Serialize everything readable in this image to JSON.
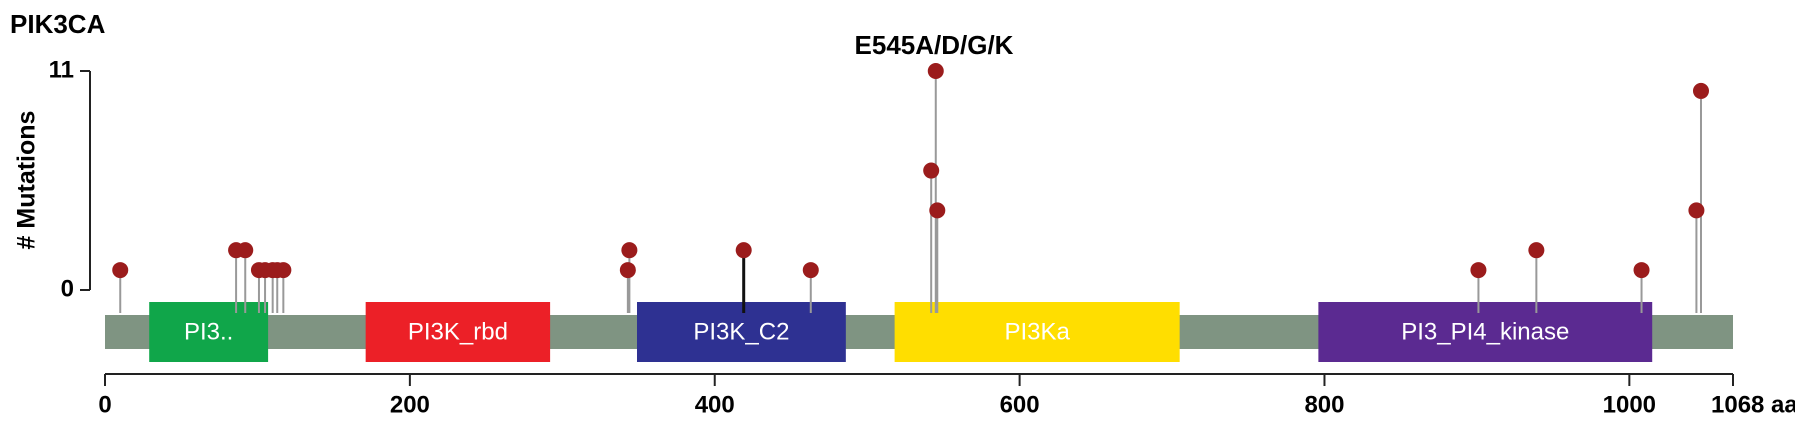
{
  "chart_data": {
    "type": "lollipop",
    "title": "PIK3CA",
    "annotation": "E545A/D/G/K",
    "ylabel": "# Mutations",
    "x": [
      10,
      86,
      92,
      101,
      105,
      110,
      113,
      117,
      343,
      344,
      419,
      463,
      542,
      545,
      546,
      901,
      939,
      1008,
      1044,
      1047
    ],
    "values": [
      1,
      2,
      2,
      1,
      1,
      1,
      1,
      1,
      1,
      2,
      2,
      1,
      6,
      11,
      4,
      1,
      2,
      1,
      4,
      10
    ],
    "color": "#9b1c1c",
    "stem_colors": [
      "#999",
      "#999",
      "#999",
      "#999",
      "#999",
      "#999",
      "#999",
      "#999",
      "#999",
      "#999",
      "#111",
      "#999",
      "#999",
      "#999",
      "#999",
      "#999",
      "#999",
      "#999",
      "#999",
      "#999"
    ],
    "track_color": "#7f9482",
    "domains": [
      {
        "name": "PI3..",
        "start": 29,
        "end": 107,
        "color": "#10a64a"
      },
      {
        "name": "PI3K_rbd",
        "start": 171,
        "end": 292,
        "color": "#ec2027"
      },
      {
        "name": "PI3K_C2",
        "start": 349,
        "end": 486,
        "color": "#2e3192"
      },
      {
        "name": "PI3Ka",
        "start": 518,
        "end": 705,
        "color": "#ffde00"
      },
      {
        "name": "PI3_PI4_kinase",
        "start": 796,
        "end": 1015,
        "color": "#5b2a91"
      }
    ],
    "xlim": [
      0,
      1068
    ],
    "xticks": [
      0,
      200,
      400,
      600,
      800,
      1000,
      {
        "value": 1068,
        "label": "1068 aa"
      }
    ],
    "ylim": [
      0,
      11
    ],
    "yticks": [
      0,
      11
    ]
  }
}
